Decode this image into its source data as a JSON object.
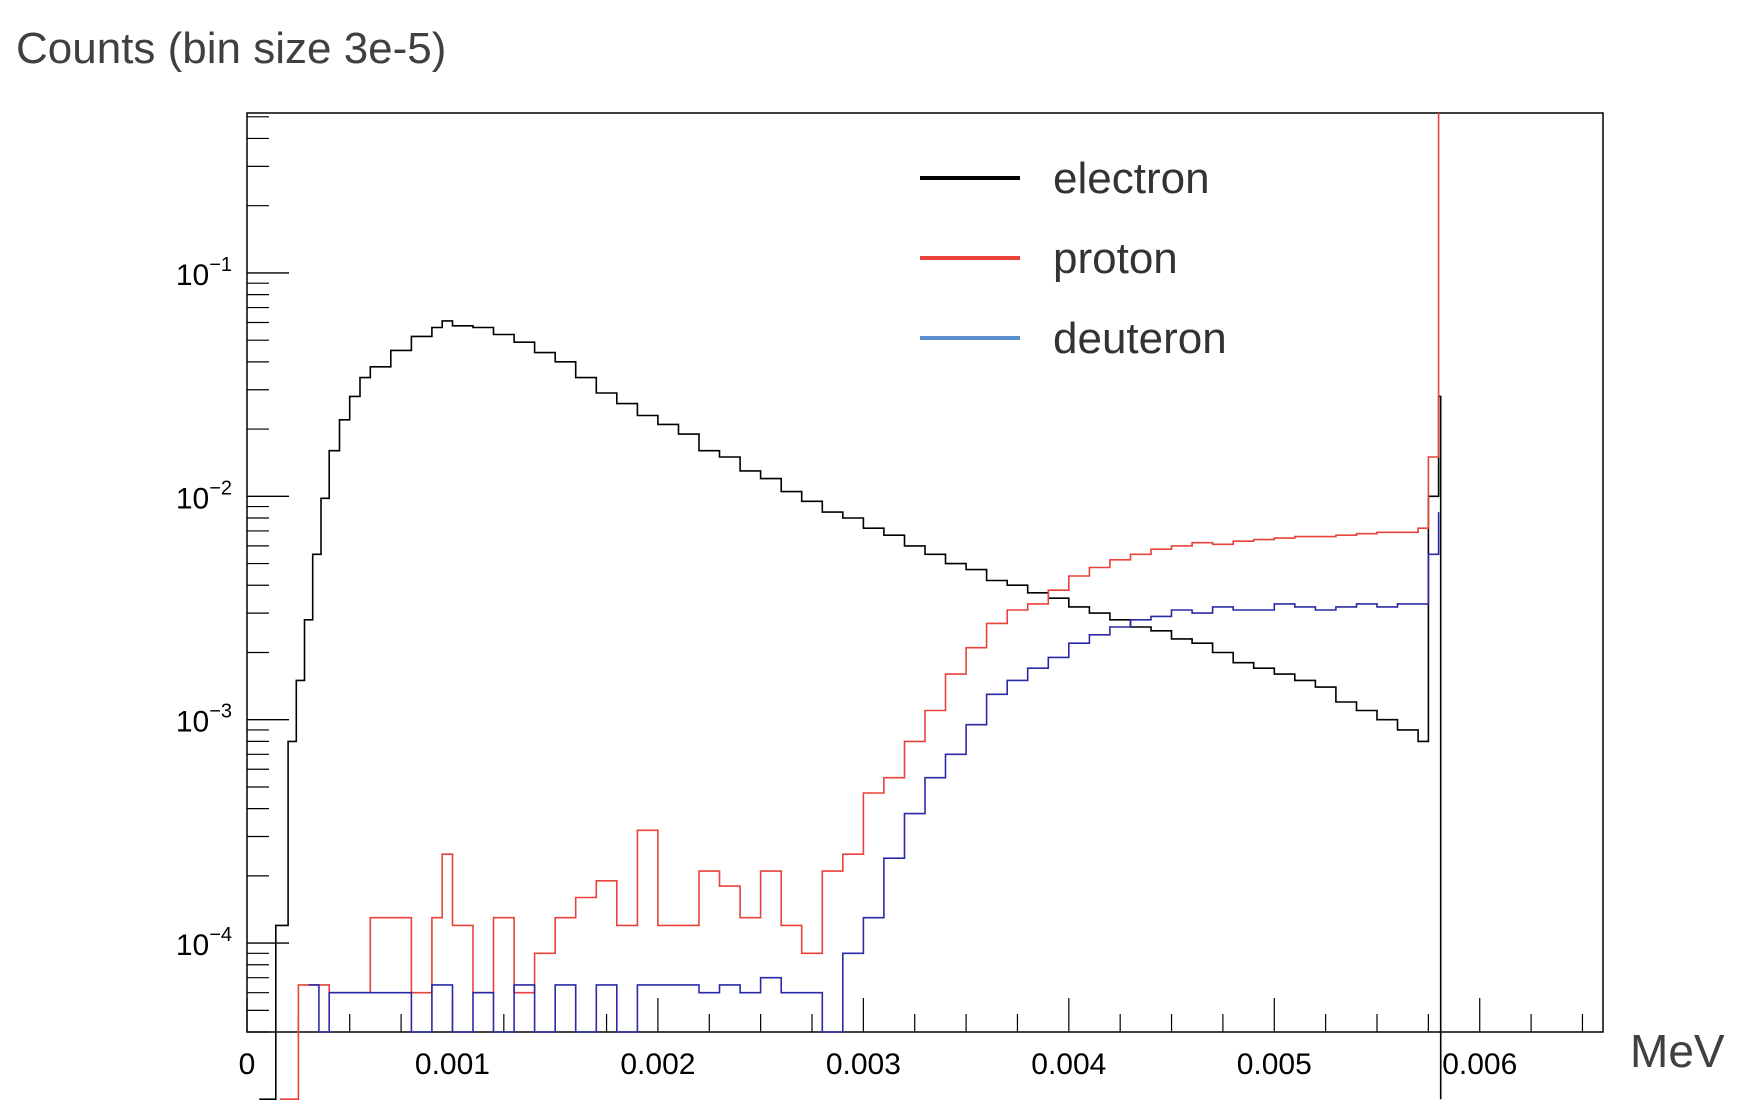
{
  "chart_data": {
    "type": "line",
    "title": "Counts (bin size 3e-5)",
    "xlabel": "MeV",
    "ylabel": "",
    "xlim": [
      0,
      0.0066
    ],
    "ylim": [
      4e-05,
      0.52
    ],
    "yscale": "log",
    "grid": false,
    "legend_position": "top-right",
    "x_ticks": [
      {
        "value": 0,
        "label": "0"
      },
      {
        "value": 0.001,
        "label": "0.001"
      },
      {
        "value": 0.002,
        "label": "0.002"
      },
      {
        "value": 0.003,
        "label": "0.003"
      },
      {
        "value": 0.004,
        "label": "0.004"
      },
      {
        "value": 0.005,
        "label": "0.005"
      },
      {
        "value": 0.006,
        "label": "0.006"
      }
    ],
    "y_ticks": [
      {
        "value": 0.1,
        "base": "10",
        "exp": "−1"
      },
      {
        "value": 0.01,
        "base": "10",
        "exp": "−2"
      },
      {
        "value": 0.001,
        "base": "10",
        "exp": "−3"
      },
      {
        "value": 0.0001,
        "base": "10",
        "exp": "−4"
      }
    ],
    "series": [
      {
        "name": "electron",
        "color": "#000000",
        "points": [
          [
            6e-05,
            1e-05
          ],
          [
            0.00014,
            0.00012
          ],
          [
            0.0002,
            0.0008
          ],
          [
            0.00024,
            0.0015
          ],
          [
            0.00028,
            0.0028
          ],
          [
            0.00032,
            0.0055
          ],
          [
            0.00036,
            0.0098
          ],
          [
            0.0004,
            0.016
          ],
          [
            0.00045,
            0.022
          ],
          [
            0.0005,
            0.028
          ],
          [
            0.00055,
            0.034
          ],
          [
            0.0006,
            0.038
          ],
          [
            0.0007,
            0.045
          ],
          [
            0.0008,
            0.052
          ],
          [
            0.0009,
            0.057
          ],
          [
            0.00095,
            0.061
          ],
          [
            0.001,
            0.058
          ],
          [
            0.0011,
            0.057
          ],
          [
            0.0012,
            0.053
          ],
          [
            0.0013,
            0.049
          ],
          [
            0.0014,
            0.044
          ],
          [
            0.0015,
            0.04
          ],
          [
            0.0016,
            0.034
          ],
          [
            0.0017,
            0.029
          ],
          [
            0.0018,
            0.026
          ],
          [
            0.0019,
            0.023
          ],
          [
            0.002,
            0.021
          ],
          [
            0.0021,
            0.019
          ],
          [
            0.0022,
            0.016
          ],
          [
            0.0023,
            0.015
          ],
          [
            0.0024,
            0.013
          ],
          [
            0.0025,
            0.012
          ],
          [
            0.0026,
            0.0105
          ],
          [
            0.0027,
            0.0095
          ],
          [
            0.0028,
            0.0085
          ],
          [
            0.0029,
            0.008
          ],
          [
            0.003,
            0.0072
          ],
          [
            0.0031,
            0.0067
          ],
          [
            0.0032,
            0.006
          ],
          [
            0.0033,
            0.0055
          ],
          [
            0.0034,
            0.005
          ],
          [
            0.0035,
            0.0047
          ],
          [
            0.0036,
            0.0042
          ],
          [
            0.0037,
            0.004
          ],
          [
            0.0038,
            0.0037
          ],
          [
            0.0039,
            0.0035
          ],
          [
            0.004,
            0.0032
          ],
          [
            0.0041,
            0.003
          ],
          [
            0.0042,
            0.0028
          ],
          [
            0.0043,
            0.0026
          ],
          [
            0.0044,
            0.0025
          ],
          [
            0.0045,
            0.0023
          ],
          [
            0.0046,
            0.0022
          ],
          [
            0.0047,
            0.002
          ],
          [
            0.0048,
            0.0018
          ],
          [
            0.0049,
            0.0017
          ],
          [
            0.005,
            0.0016
          ],
          [
            0.0051,
            0.0015
          ],
          [
            0.0052,
            0.0014
          ],
          [
            0.0053,
            0.0012
          ],
          [
            0.0054,
            0.0011
          ],
          [
            0.0055,
            0.001
          ],
          [
            0.0056,
            0.0009
          ],
          [
            0.0057,
            0.0008
          ],
          [
            0.00575,
            0.01
          ],
          [
            0.0058,
            0.028
          ],
          [
            0.00581,
            1e-05
          ]
        ]
      },
      {
        "name": "proton",
        "color": "#e8423a",
        "points": [
          [
            0.00016,
            1e-05
          ],
          [
            0.00025,
            6.5e-05
          ],
          [
            0.0003,
            6.5e-05
          ],
          [
            0.0004,
            6e-05
          ],
          [
            0.0005,
            6e-05
          ],
          [
            0.00055,
            6e-05
          ],
          [
            0.0006,
            0.00013
          ],
          [
            0.0007,
            0.00013
          ],
          [
            0.0008,
            6e-05
          ],
          [
            0.0009,
            0.00013
          ],
          [
            0.00095,
            0.00025
          ],
          [
            0.001,
            0.00012
          ],
          [
            0.0011,
            6e-05
          ],
          [
            0.0012,
            0.00013
          ],
          [
            0.0013,
            6e-05
          ],
          [
            0.0014,
            9e-05
          ],
          [
            0.0015,
            0.00013
          ],
          [
            0.0016,
            0.00016
          ],
          [
            0.0017,
            0.00019
          ],
          [
            0.0018,
            0.00012
          ],
          [
            0.0019,
            0.00032
          ],
          [
            0.002,
            0.00012
          ],
          [
            0.0021,
            0.00012
          ],
          [
            0.0022,
            0.00021
          ],
          [
            0.0023,
            0.00018
          ],
          [
            0.0024,
            0.00013
          ],
          [
            0.0025,
            0.00021
          ],
          [
            0.0026,
            0.00012
          ],
          [
            0.0027,
            9e-05
          ],
          [
            0.0028,
            0.00021
          ],
          [
            0.0029,
            0.00025
          ],
          [
            0.003,
            0.00047
          ],
          [
            0.0031,
            0.00055
          ],
          [
            0.0032,
            0.0008
          ],
          [
            0.0033,
            0.0011
          ],
          [
            0.0034,
            0.0016
          ],
          [
            0.0035,
            0.0021
          ],
          [
            0.0036,
            0.0027
          ],
          [
            0.0037,
            0.0031
          ],
          [
            0.0038,
            0.0033
          ],
          [
            0.0039,
            0.0038
          ],
          [
            0.004,
            0.0044
          ],
          [
            0.0041,
            0.0048
          ],
          [
            0.0042,
            0.0052
          ],
          [
            0.0043,
            0.0055
          ],
          [
            0.0044,
            0.0058
          ],
          [
            0.0045,
            0.006
          ],
          [
            0.0046,
            0.0062
          ],
          [
            0.0047,
            0.0061
          ],
          [
            0.0048,
            0.0063
          ],
          [
            0.0049,
            0.0064
          ],
          [
            0.005,
            0.0065
          ],
          [
            0.0051,
            0.0066
          ],
          [
            0.0052,
            0.0066
          ],
          [
            0.0053,
            0.0067
          ],
          [
            0.0054,
            0.0068
          ],
          [
            0.0055,
            0.0069
          ],
          [
            0.0056,
            0.0069
          ],
          [
            0.0057,
            0.0072
          ],
          [
            0.00575,
            0.015
          ],
          [
            0.0058,
            0.52
          ]
        ]
      },
      {
        "name": "deuteron",
        "color": "#2a2aa8",
        "legend_color": "#5b8fd0",
        "points": [
          [
            0.0003,
            6.5e-05
          ],
          [
            0.00035,
            4e-05
          ],
          [
            0.0004,
            6e-05
          ],
          [
            0.0008,
            4e-05
          ],
          [
            0.0009,
            6.5e-05
          ],
          [
            0.001,
            4e-05
          ],
          [
            0.0011,
            6e-05
          ],
          [
            0.0012,
            4e-05
          ],
          [
            0.0013,
            6.5e-05
          ],
          [
            0.0014,
            4e-05
          ],
          [
            0.0015,
            6.5e-05
          ],
          [
            0.0016,
            4e-05
          ],
          [
            0.0017,
            6.5e-05
          ],
          [
            0.0018,
            4e-05
          ],
          [
            0.0019,
            6.5e-05
          ],
          [
            0.002,
            6.5e-05
          ],
          [
            0.0021,
            6.5e-05
          ],
          [
            0.0022,
            6e-05
          ],
          [
            0.0023,
            6.5e-05
          ],
          [
            0.0024,
            6e-05
          ],
          [
            0.0025,
            7e-05
          ],
          [
            0.0026,
            6e-05
          ],
          [
            0.0027,
            6e-05
          ],
          [
            0.0028,
            4e-05
          ],
          [
            0.0029,
            9e-05
          ],
          [
            0.003,
            0.00013
          ],
          [
            0.0031,
            0.00024
          ],
          [
            0.0032,
            0.00038
          ],
          [
            0.0033,
            0.00055
          ],
          [
            0.0034,
            0.0007
          ],
          [
            0.0035,
            0.00095
          ],
          [
            0.0036,
            0.0013
          ],
          [
            0.0037,
            0.0015
          ],
          [
            0.0038,
            0.0017
          ],
          [
            0.0039,
            0.0019
          ],
          [
            0.004,
            0.0022
          ],
          [
            0.0041,
            0.0024
          ],
          [
            0.0042,
            0.0026
          ],
          [
            0.0043,
            0.0028
          ],
          [
            0.0044,
            0.0029
          ],
          [
            0.0045,
            0.0031
          ],
          [
            0.0046,
            0.003
          ],
          [
            0.0047,
            0.0032
          ],
          [
            0.0048,
            0.0031
          ],
          [
            0.0049,
            0.0031
          ],
          [
            0.005,
            0.0033
          ],
          [
            0.0051,
            0.0032
          ],
          [
            0.0052,
            0.0031
          ],
          [
            0.0053,
            0.0032
          ],
          [
            0.0054,
            0.0033
          ],
          [
            0.0055,
            0.0032
          ],
          [
            0.0056,
            0.0033
          ],
          [
            0.0057,
            0.0033
          ],
          [
            0.00575,
            0.0055
          ],
          [
            0.0058,
            0.0085
          ]
        ]
      }
    ]
  }
}
